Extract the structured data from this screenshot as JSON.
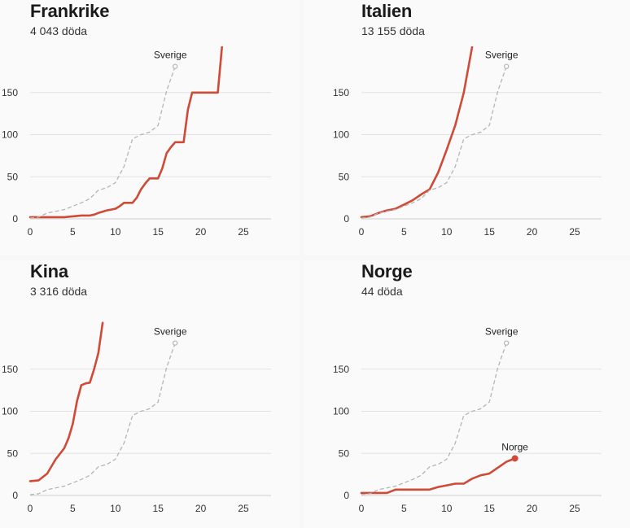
{
  "chart_data": [
    {
      "type": "line",
      "title": "Frankrike",
      "subtitle": "4 043 döda",
      "xticks": [
        0,
        5,
        10,
        15,
        20,
        25
      ],
      "yticks": [
        0,
        50,
        100,
        150
      ],
      "xlim": [
        0,
        28
      ],
      "ylim": [
        0,
        200
      ],
      "series": [
        {
          "role": "country",
          "x": [
            0,
            1,
            2,
            3,
            4,
            5,
            6,
            7,
            7.5,
            8,
            9,
            10,
            10.5,
            11,
            12,
            12.5,
            13,
            13.5,
            14,
            15,
            15.5,
            16,
            16.5,
            17,
            18,
            18.5,
            19,
            20,
            21,
            21.5,
            22,
            22.5
          ],
          "y": [
            2,
            2,
            2,
            2,
            2,
            3,
            4,
            4,
            5,
            7,
            10,
            12,
            15,
            19,
            19,
            25,
            35,
            42,
            48,
            48,
            60,
            78,
            85,
            91,
            91,
            130,
            150,
            150,
            150,
            150,
            150,
            205
          ]
        },
        {
          "name": "Sverige",
          "role": "reference",
          "x": [
            0,
            1,
            2,
            3,
            4,
            5,
            6,
            7,
            8,
            9,
            10,
            11,
            12,
            13,
            14,
            15,
            16,
            17
          ],
          "y": [
            1,
            2,
            7,
            9,
            11,
            15,
            19,
            24,
            34,
            37,
            43,
            62,
            95,
            100,
            103,
            111,
            152,
            181
          ]
        }
      ]
    },
    {
      "type": "line",
      "title": "Italien",
      "subtitle": "13 155 döda",
      "xticks": [
        0,
        5,
        10,
        15,
        20,
        25
      ],
      "yticks": [
        0,
        50,
        100,
        150
      ],
      "xlim": [
        0,
        28
      ],
      "ylim": [
        0,
        200
      ],
      "series": [
        {
          "role": "country",
          "x": [
            0,
            1,
            2,
            3,
            4,
            5,
            6,
            7,
            8,
            9,
            10,
            11,
            12,
            13
          ],
          "y": [
            2,
            3,
            7,
            10,
            12,
            17,
            22,
            29,
            35,
            55,
            82,
            111,
            150,
            205
          ]
        },
        {
          "name": "Sverige",
          "role": "reference",
          "x": [
            0,
            1,
            2,
            3,
            4,
            5,
            6,
            7,
            8,
            9,
            10,
            11,
            12,
            13,
            14,
            15,
            16,
            17
          ],
          "y": [
            1,
            2,
            7,
            9,
            11,
            15,
            19,
            24,
            34,
            37,
            43,
            62,
            95,
            100,
            103,
            111,
            152,
            181
          ]
        }
      ]
    },
    {
      "type": "line",
      "title": "Kina",
      "subtitle": "3 316 döda",
      "xticks": [
        0,
        5,
        10,
        15,
        20,
        25
      ],
      "yticks": [
        0,
        50,
        100,
        150
      ],
      "xlim": [
        0,
        28
      ],
      "ylim": [
        0,
        200
      ],
      "series": [
        {
          "role": "country",
          "x": [
            0,
            1,
            2,
            3,
            4,
            4.5,
            5,
            5.5,
            6,
            6.5,
            7,
            7.5,
            8,
            8.5
          ],
          "y": [
            17,
            18,
            26,
            43,
            56,
            68,
            85,
            112,
            131,
            133,
            134,
            150,
            169,
            205
          ]
        },
        {
          "name": "Sverige",
          "role": "reference",
          "x": [
            0,
            1,
            2,
            3,
            4,
            5,
            6,
            7,
            8,
            9,
            10,
            11,
            12,
            13,
            14,
            15,
            16,
            17
          ],
          "y": [
            1,
            2,
            7,
            9,
            11,
            15,
            19,
            24,
            34,
            37,
            43,
            62,
            95,
            100,
            103,
            111,
            152,
            181
          ]
        }
      ]
    },
    {
      "type": "line",
      "title": "Norge",
      "subtitle": "44 döda",
      "xticks": [
        0,
        5,
        10,
        15,
        20,
        25
      ],
      "yticks": [
        0,
        50,
        100,
        150
      ],
      "xlim": [
        0,
        28
      ],
      "ylim": [
        0,
        200
      ],
      "series": [
        {
          "name": "Norge",
          "role": "country",
          "end_marker": true,
          "x": [
            0,
            1,
            2,
            3,
            4,
            5,
            6,
            7,
            8,
            9,
            10,
            11,
            12,
            13,
            14,
            15,
            16,
            17,
            18
          ],
          "y": [
            3,
            3,
            3,
            3,
            7,
            7,
            7,
            7,
            7,
            10,
            12,
            14,
            14,
            20,
            24,
            26,
            33,
            40,
            44
          ]
        },
        {
          "name": "Sverige",
          "role": "reference",
          "x": [
            0,
            1,
            2,
            3,
            4,
            5,
            6,
            7,
            8,
            9,
            10,
            11,
            12,
            13,
            14,
            15,
            16,
            17
          ],
          "y": [
            1,
            2,
            7,
            9,
            11,
            15,
            19,
            24,
            34,
            37,
            43,
            62,
            95,
            100,
            103,
            111,
            152,
            181
          ]
        }
      ]
    }
  ],
  "colors": {
    "country_line": "#cf4a37",
    "reference_line": "#b5b5b5",
    "gridline": "#e2e2e2",
    "axis_text": "#333333"
  }
}
